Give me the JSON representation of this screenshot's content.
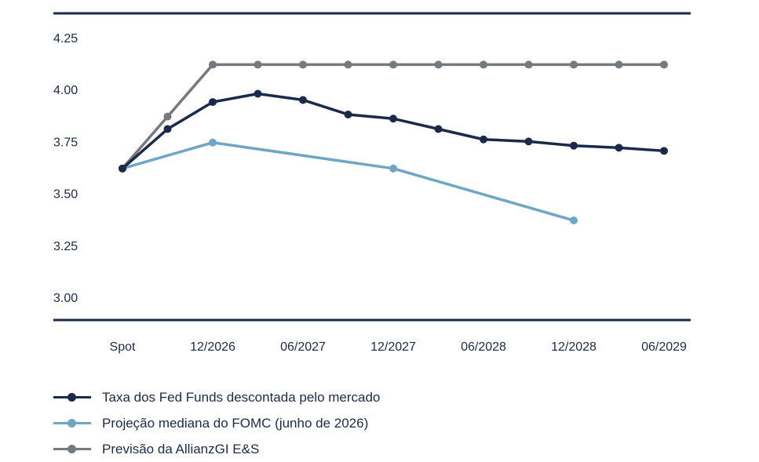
{
  "chart_data": {
    "type": "line",
    "x": [
      "Spot",
      "",
      "12/2026",
      "",
      "06/2027",
      "",
      "12/2027",
      "",
      "06/2028",
      "",
      "12/2028",
      "",
      "06/2029"
    ],
    "x_tick_labels": [
      "Spot",
      "12/2026",
      "06/2027",
      "12/2027",
      "06/2028",
      "12/2028",
      "06/2029"
    ],
    "y_tick_labels": [
      "4.25",
      "4.00",
      "3.75",
      "3.50",
      "3.25",
      "3.00"
    ],
    "ylim": [
      3.0,
      4.25
    ],
    "grid": false,
    "legend_position": "bottom-left",
    "series": [
      {
        "name": "Taxa dos Fed Funds descontada pelo mercado",
        "color": "#1b2a4a",
        "points": [
          [
            0,
            3.62
          ],
          [
            1,
            3.81
          ],
          [
            2,
            3.94
          ],
          [
            3,
            3.98
          ],
          [
            4,
            3.95
          ],
          [
            5,
            3.88
          ],
          [
            6,
            3.86
          ],
          [
            7,
            3.81
          ],
          [
            8,
            3.76
          ],
          [
            9,
            3.75
          ],
          [
            10,
            3.73
          ],
          [
            11,
            3.72
          ],
          [
            12,
            3.705
          ]
        ]
      },
      {
        "name": "Projeção mediana do FOMC (junho de 2026)",
        "color": "#6ea6c6",
        "points": [
          [
            0,
            3.62
          ],
          [
            2,
            3.745
          ],
          [
            6,
            3.62
          ],
          [
            10,
            3.37
          ]
        ]
      },
      {
        "name": "Previsão da AllianzGI E&S",
        "color": "#737b80",
        "points": [
          [
            0,
            3.62
          ],
          [
            1,
            3.87
          ],
          [
            2,
            4.12
          ],
          [
            3,
            4.12
          ],
          [
            4,
            4.12
          ],
          [
            5,
            4.12
          ],
          [
            6,
            4.12
          ],
          [
            7,
            4.12
          ],
          [
            8,
            4.12
          ],
          [
            9,
            4.12
          ],
          [
            10,
            4.12
          ],
          [
            11,
            4.12
          ],
          [
            12,
            4.12
          ]
        ]
      }
    ]
  }
}
